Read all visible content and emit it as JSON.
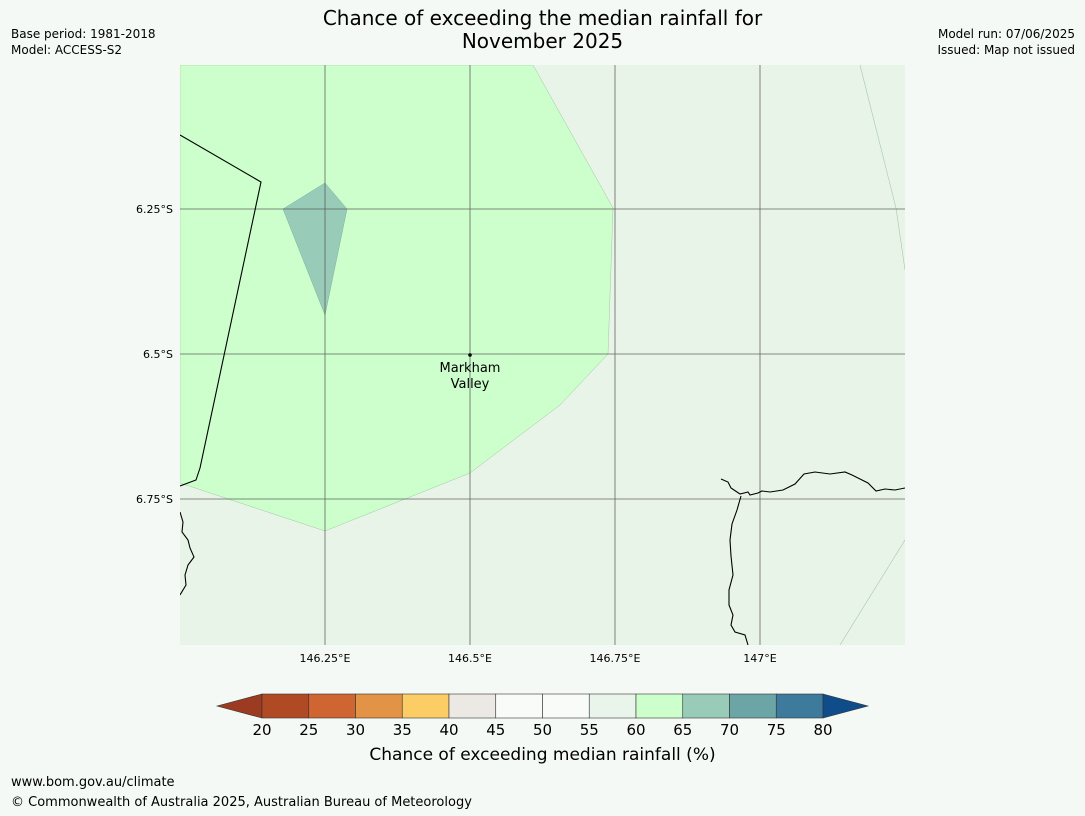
{
  "title": {
    "line1": "Chance of exceeding the median rainfall for",
    "line2": "November 2025"
  },
  "meta_left": {
    "base_period": "Base period: 1981-2018",
    "model": "Model: ACCESS-S2"
  },
  "meta_right": {
    "model_run": "Model run: 07/06/2025",
    "issued": "Issued: Map not issued"
  },
  "map": {
    "lat_labels": [
      "6.25°S",
      "6.5°S",
      "6.75°S"
    ],
    "lon_labels": [
      "146.25°E",
      "146.5°E",
      "146.75°E",
      "147°E"
    ],
    "place": {
      "name_line1": "Markham",
      "name_line2": "Valley"
    },
    "colors": {
      "band_55_60": "#e8f4e8",
      "band_60_65": "#ccffcc",
      "band_65_70": "#99ccb8",
      "gridline": "#555555",
      "coastline": "#000000"
    }
  },
  "colorbar": {
    "title": "Chance of exceeding median rainfall (%)",
    "ticks": [
      "20",
      "25",
      "30",
      "35",
      "40",
      "45",
      "50",
      "55",
      "60",
      "65",
      "70",
      "75",
      "80"
    ],
    "under_color": "#9c3a22",
    "over_color": "#0f4c8a",
    "colors": [
      "#b04a25",
      "#cf6530",
      "#e39345",
      "#fdcd65",
      "#ece9e4",
      "#f9fbf9",
      "#f9fbf9",
      "#e9f4ea",
      "#ccffcc",
      "#99ccb8",
      "#6ca5a6",
      "#3e7a9c"
    ]
  },
  "footer": {
    "url": "www.bom.gov.au/climate",
    "copyright": "© Commonwealth of Australia 2025, Australian Bureau of Meteorology"
  }
}
